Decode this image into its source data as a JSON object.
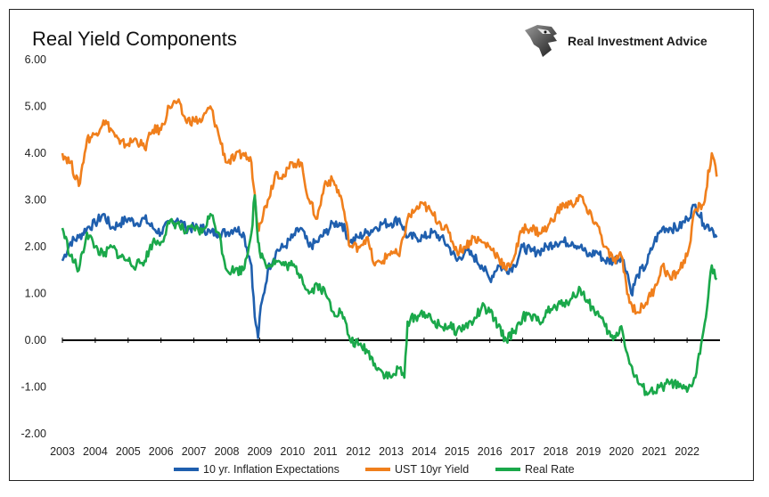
{
  "brand": {
    "name": "Real Investment Advice",
    "logo_icon": "eagle-head-icon"
  },
  "chart_data": {
    "type": "line",
    "title": "Real Yield Components",
    "xlabel": "",
    "ylabel": "",
    "x_ticks": [
      "2003",
      "2004",
      "2005",
      "2006",
      "2007",
      "2008",
      "2009",
      "2010",
      "2011",
      "2012",
      "2013",
      "2014",
      "2015",
      "2016",
      "2017",
      "2018",
      "2019",
      "2020",
      "2021",
      "2022"
    ],
    "y_ticks": [
      "6.00",
      "5.00",
      "4.00",
      "3.00",
      "2.00",
      "1.00",
      "0.00",
      "-1.00",
      "-2.00"
    ],
    "xlim": [
      2003,
      2023
    ],
    "ylim": [
      -2,
      6
    ],
    "grid": false,
    "legend_position": "bottom",
    "series": [
      {
        "name": "10 yr. Inflation Expectations",
        "color": "#1f5fae",
        "x": [
          2003.0,
          2003.25,
          2003.5,
          2003.75,
          2004.0,
          2004.25,
          2004.5,
          2004.75,
          2005.0,
          2005.25,
          2005.5,
          2005.75,
          2006.0,
          2006.25,
          2006.5,
          2006.75,
          2007.0,
          2007.25,
          2007.5,
          2007.75,
          2008.0,
          2008.25,
          2008.5,
          2008.75,
          2008.85,
          2008.95,
          2009.0,
          2009.25,
          2009.5,
          2009.75,
          2010.0,
          2010.25,
          2010.5,
          2010.75,
          2011.0,
          2011.25,
          2011.5,
          2011.75,
          2012.0,
          2012.25,
          2012.5,
          2012.75,
          2013.0,
          2013.25,
          2013.5,
          2013.75,
          2014.0,
          2014.25,
          2014.5,
          2014.75,
          2015.0,
          2015.25,
          2015.5,
          2015.75,
          2016.0,
          2016.25,
          2016.5,
          2016.75,
          2017.0,
          2017.25,
          2017.5,
          2017.75,
          2018.0,
          2018.25,
          2018.5,
          2018.75,
          2019.0,
          2019.25,
          2019.5,
          2019.75,
          2020.0,
          2020.2,
          2020.3,
          2020.5,
          2020.75,
          2021.0,
          2021.25,
          2021.5,
          2021.75,
          2022.0,
          2022.25,
          2022.5,
          2022.75,
          2022.9
        ],
        "values": [
          1.7,
          2.1,
          2.2,
          2.4,
          2.5,
          2.7,
          2.4,
          2.5,
          2.6,
          2.5,
          2.6,
          2.4,
          2.3,
          2.5,
          2.6,
          2.4,
          2.4,
          2.4,
          2.3,
          2.3,
          2.3,
          2.4,
          2.3,
          1.6,
          0.5,
          0.05,
          0.5,
          1.5,
          1.9,
          2.0,
          2.2,
          2.4,
          2.0,
          2.1,
          2.3,
          2.5,
          2.5,
          2.1,
          2.2,
          2.3,
          2.4,
          2.5,
          2.5,
          2.6,
          2.2,
          2.2,
          2.2,
          2.3,
          2.2,
          2.0,
          1.7,
          1.9,
          1.8,
          1.6,
          1.3,
          1.6,
          1.5,
          1.6,
          2.0,
          1.9,
          1.9,
          2.0,
          2.1,
          2.1,
          2.1,
          2.0,
          1.8,
          1.9,
          1.7,
          1.7,
          1.8,
          1.4,
          1.0,
          1.4,
          1.6,
          2.1,
          2.4,
          2.4,
          2.4,
          2.6,
          2.9,
          2.5,
          2.4,
          2.2
        ]
      },
      {
        "name": "UST 10yr Yield",
        "color": "#f07f1c",
        "x": [
          2003.0,
          2003.25,
          2003.5,
          2003.75,
          2004.0,
          2004.25,
          2004.5,
          2004.75,
          2005.0,
          2005.25,
          2005.5,
          2005.75,
          2006.0,
          2006.25,
          2006.5,
          2006.75,
          2007.0,
          2007.25,
          2007.5,
          2007.75,
          2008.0,
          2008.25,
          2008.5,
          2008.75,
          2008.95,
          2009.0,
          2009.25,
          2009.5,
          2009.75,
          2010.0,
          2010.25,
          2010.5,
          2010.75,
          2011.0,
          2011.25,
          2011.5,
          2011.75,
          2012.0,
          2012.25,
          2012.5,
          2012.75,
          2013.0,
          2013.25,
          2013.5,
          2013.75,
          2014.0,
          2014.25,
          2014.5,
          2014.75,
          2015.0,
          2015.25,
          2015.5,
          2015.75,
          2016.0,
          2016.25,
          2016.5,
          2016.75,
          2017.0,
          2017.25,
          2017.5,
          2017.75,
          2018.0,
          2018.25,
          2018.5,
          2018.75,
          2019.0,
          2019.25,
          2019.5,
          2019.75,
          2020.0,
          2020.25,
          2020.5,
          2020.75,
          2021.0,
          2021.25,
          2021.5,
          2021.75,
          2022.0,
          2022.25,
          2022.5,
          2022.75,
          2022.9
        ],
        "values": [
          4.0,
          3.8,
          3.3,
          4.3,
          4.4,
          4.7,
          4.5,
          4.2,
          4.2,
          4.3,
          4.1,
          4.5,
          4.5,
          5.0,
          5.1,
          4.7,
          4.7,
          4.7,
          5.0,
          4.4,
          3.8,
          3.9,
          4.0,
          3.8,
          2.4,
          2.5,
          3.0,
          3.6,
          3.5,
          3.8,
          3.8,
          3.0,
          2.6,
          3.4,
          3.4,
          3.0,
          2.0,
          2.0,
          2.2,
          1.6,
          1.7,
          1.9,
          1.8,
          2.6,
          2.8,
          2.9,
          2.7,
          2.5,
          2.3,
          1.9,
          2.0,
          2.2,
          2.1,
          2.0,
          1.8,
          1.5,
          1.8,
          2.4,
          2.4,
          2.3,
          2.4,
          2.7,
          2.9,
          2.9,
          3.1,
          2.7,
          2.5,
          2.0,
          1.7,
          1.8,
          0.8,
          0.6,
          0.8,
          1.1,
          1.6,
          1.3,
          1.5,
          1.8,
          2.8,
          2.9,
          4.0,
          3.5
        ]
      },
      {
        "name": "Real Rate",
        "color": "#1aa84a",
        "x": [
          2003.0,
          2003.25,
          2003.5,
          2003.75,
          2004.0,
          2004.25,
          2004.5,
          2004.75,
          2005.0,
          2005.25,
          2005.5,
          2005.75,
          2006.0,
          2006.25,
          2006.5,
          2006.75,
          2007.0,
          2007.25,
          2007.5,
          2007.75,
          2008.0,
          2008.25,
          2008.5,
          2008.75,
          2008.85,
          2008.95,
          2009.0,
          2009.25,
          2009.5,
          2009.75,
          2010.0,
          2010.25,
          2010.5,
          2010.75,
          2011.0,
          2011.25,
          2011.5,
          2011.75,
          2012.0,
          2012.25,
          2012.5,
          2012.75,
          2013.0,
          2013.25,
          2013.4,
          2013.5,
          2013.75,
          2014.0,
          2014.25,
          2014.5,
          2014.75,
          2015.0,
          2015.25,
          2015.5,
          2015.75,
          2016.0,
          2016.25,
          2016.5,
          2016.75,
          2017.0,
          2017.25,
          2017.5,
          2017.75,
          2018.0,
          2018.25,
          2018.5,
          2018.75,
          2019.0,
          2019.25,
          2019.5,
          2019.75,
          2020.0,
          2020.25,
          2020.5,
          2020.75,
          2021.0,
          2021.25,
          2021.5,
          2021.75,
          2022.0,
          2022.25,
          2022.5,
          2022.75,
          2022.9
        ],
        "values": [
          2.4,
          1.8,
          1.5,
          2.3,
          2.0,
          1.8,
          2.0,
          1.8,
          1.7,
          1.6,
          1.7,
          2.1,
          2.1,
          2.5,
          2.5,
          2.3,
          2.4,
          2.3,
          2.7,
          2.3,
          1.5,
          1.5,
          1.5,
          2.3,
          3.1,
          2.1,
          1.9,
          1.6,
          1.7,
          1.6,
          1.6,
          1.4,
          1.0,
          1.2,
          1.0,
          0.6,
          0.6,
          0.0,
          -0.1,
          -0.2,
          -0.5,
          -0.7,
          -0.8,
          -0.6,
          -0.8,
          0.4,
          0.5,
          0.6,
          0.4,
          0.3,
          0.3,
          0.2,
          0.3,
          0.4,
          0.7,
          0.6,
          0.3,
          0.0,
          0.2,
          0.5,
          0.5,
          0.4,
          0.6,
          0.7,
          0.8,
          0.9,
          1.1,
          0.8,
          0.6,
          0.3,
          0.0,
          0.3,
          -0.5,
          -0.9,
          -1.1,
          -1.1,
          -1.0,
          -0.9,
          -1.0,
          -1.1,
          -0.8,
          0.2,
          1.6,
          1.3
        ]
      }
    ]
  }
}
